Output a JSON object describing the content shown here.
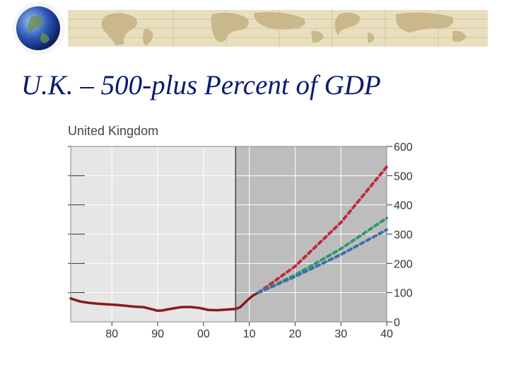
{
  "slide": {
    "title": "U.K. – 500-plus Percent of GDP"
  },
  "colors": {
    "banner_bg": "#e9dfbf",
    "title_text": "#0a1a6e",
    "history_bg": "#e6e6e6",
    "projection_bg": "#bdbdbd",
    "historical_line": "#8b1a1a",
    "projection_red": "#c02b3a",
    "projection_green": "#2e9a6a",
    "projection_blue": "#3b6fb0"
  },
  "chart_data": {
    "type": "line",
    "title": "United Kingdom",
    "xlabel": "",
    "ylabel": "",
    "xlim": [
      1971,
      2040
    ],
    "ylim": [
      0,
      600
    ],
    "x_tick_values": [
      1980,
      1990,
      2000,
      2010,
      2020,
      2030,
      2040
    ],
    "x_tick_labels": [
      "80",
      "90",
      "00",
      "10",
      "20",
      "30",
      "40"
    ],
    "y_ticks": [
      0,
      100,
      200,
      300,
      400,
      500,
      600
    ],
    "y_axis_side": "right",
    "grid": true,
    "shaded_projection_from": 2007,
    "marker_line_x": 2007,
    "series": [
      {
        "style": "solid",
        "color": "#8b1a1a",
        "points": [
          [
            1971,
            80
          ],
          [
            1973,
            70
          ],
          [
            1975,
            65
          ],
          [
            1977,
            62
          ],
          [
            1979,
            60
          ],
          [
            1981,
            58
          ],
          [
            1983,
            55
          ],
          [
            1985,
            52
          ],
          [
            1987,
            50
          ],
          [
            1989,
            42
          ],
          [
            1990,
            38
          ],
          [
            1991,
            39
          ],
          [
            1993,
            45
          ],
          [
            1995,
            50
          ],
          [
            1997,
            51
          ],
          [
            1999,
            48
          ],
          [
            2001,
            41
          ],
          [
            2003,
            40
          ],
          [
            2005,
            42
          ],
          [
            2007,
            44
          ],
          [
            2008,
            50
          ],
          [
            2009,
            65
          ],
          [
            2010,
            80
          ],
          [
            2011,
            92
          ],
          [
            2012,
            100
          ]
        ]
      },
      {
        "style": "dotted",
        "color": "#c02b3a",
        "points": [
          [
            2012,
            100
          ],
          [
            2020,
            190
          ],
          [
            2030,
            340
          ],
          [
            2040,
            530
          ]
        ]
      },
      {
        "style": "dotted",
        "color": "#2e9a6a",
        "points": [
          [
            2012,
            100
          ],
          [
            2020,
            160
          ],
          [
            2030,
            250
          ],
          [
            2040,
            355
          ]
        ]
      },
      {
        "style": "dotted",
        "color": "#3b6fb0",
        "points": [
          [
            2012,
            100
          ],
          [
            2020,
            155
          ],
          [
            2030,
            230
          ],
          [
            2040,
            315
          ]
        ]
      }
    ]
  }
}
